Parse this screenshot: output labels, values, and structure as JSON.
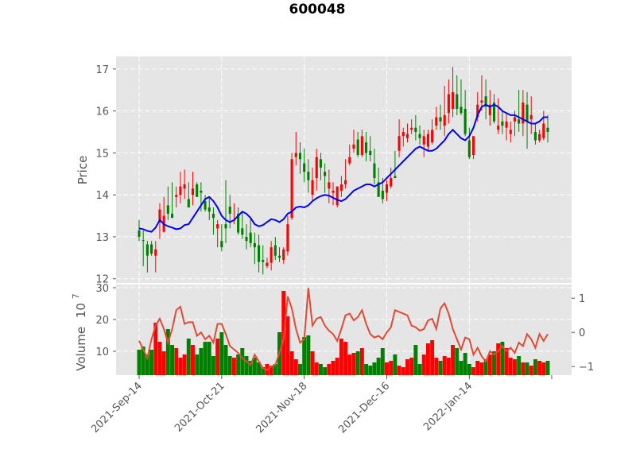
{
  "chart_data": {
    "type": "candlestick",
    "title": "600048",
    "price_panel": {
      "ylabel": "Price",
      "ylim": [
        11.9,
        17.3
      ],
      "yticks": [
        12,
        13,
        14,
        15,
        16,
        17
      ],
      "ytick_labels": [
        "12",
        "13",
        "14",
        "15",
        "16",
        "17"
      ],
      "moving_average_color": "#0000ff",
      "up_color": "#ff0000",
      "down_color": "#008000"
    },
    "volume_panel": {
      "ylabel": "Volume",
      "exponent_label": "10",
      "exponent_power": "7",
      "ylim": [
        2.5,
        31
      ],
      "yticks": [
        10,
        20,
        30
      ],
      "ytick_labels": [
        "10",
        "20",
        "30"
      ],
      "secondary_ylim": [
        -1.25,
        1.4
      ],
      "secondary_yticks": [
        -1,
        0,
        1
      ],
      "secondary_ytick_labels": [
        "−1",
        "0",
        "1"
      ],
      "secondary_line_color": "#e24a33"
    },
    "xaxis": {
      "tick_labels": [
        "2021-Sep-14",
        "2021-Oct-21",
        "2021-Nov-18",
        "2021-Dec-16",
        "2022-Jan-14"
      ],
      "tick_positions": [
        0,
        20,
        40,
        60,
        80
      ]
    },
    "x_count": 100,
    "open": [
      13.15,
      12.92,
      12.82,
      12.82,
      12.55,
      13.35,
      13.12,
      13.75,
      13.55,
      13.95,
      14.0,
      14.15,
      13.9,
      14.0,
      14.25,
      14.1,
      13.85,
      13.7,
      13.55,
      13.2,
      12.9,
      13.3,
      13.72,
      13.4,
      13.55,
      13.2,
      13.0,
      13.1,
      12.85,
      12.8,
      12.45,
      12.3,
      12.38,
      12.8,
      12.55,
      12.45,
      12.65,
      13.45,
      14.9,
      15.0,
      14.75,
      14.55,
      14.0,
      14.4,
      14.85,
      14.55,
      14.15,
      14.05,
      13.75,
      14.1,
      14.25,
      14.75,
      15.1,
      15.32,
      14.95,
      15.25,
      15.05,
      14.75,
      14.3,
      14.1,
      14.05,
      14.2,
      14.45,
      15.05,
      15.4,
      15.35,
      15.55,
      15.6,
      15.45,
      15.2,
      15.15,
      15.25,
      15.65,
      15.85,
      15.65,
      15.95,
      16.05,
      16.4,
      16.1,
      16.05,
      15.3,
      14.95,
      15.85,
      16.2,
      16.35,
      15.9,
      16.2,
      15.55,
      15.75,
      15.6,
      15.45,
      15.75,
      15.8,
      15.7,
      16.15,
      15.8,
      15.5,
      15.3,
      15.35,
      15.6
    ],
    "high": [
      13.4,
      13.15,
      12.9,
      12.9,
      12.9,
      13.8,
      13.95,
      14.2,
      14.3,
      14.2,
      14.55,
      14.6,
      14.3,
      14.55,
      14.3,
      14.3,
      14.0,
      13.95,
      13.7,
      13.4,
      13.3,
      14.35,
      14.0,
      13.8,
      13.7,
      13.6,
      13.3,
      13.45,
      13.1,
      13.05,
      12.8,
      12.5,
      12.9,
      13.0,
      12.75,
      12.75,
      13.5,
      15.0,
      15.5,
      15.25,
      15.1,
      14.85,
      14.65,
      15.1,
      15.0,
      14.75,
      14.6,
      14.3,
      14.2,
      14.45,
      14.85,
      15.2,
      15.55,
      15.5,
      15.55,
      15.5,
      15.4,
      15.1,
      14.65,
      14.4,
      14.35,
      14.65,
      15.05,
      15.8,
      15.6,
      15.7,
      15.8,
      15.9,
      15.65,
      15.55,
      15.55,
      15.8,
      16.1,
      16.15,
      16.6,
      16.75,
      17.05,
      16.85,
      16.75,
      16.5,
      15.6,
      15.4,
      16.45,
      16.85,
      16.75,
      16.5,
      16.4,
      16.3,
      16.0,
      15.95,
      15.75,
      16.0,
      16.5,
      16.5,
      16.45,
      16.35,
      15.7,
      15.55,
      16.0,
      15.9
    ],
    "low": [
      12.9,
      12.3,
      12.15,
      12.55,
      12.15,
      12.95,
      13.1,
      13.4,
      13.45,
      13.7,
      13.8,
      13.9,
      13.7,
      13.75,
      13.95,
      13.6,
      13.6,
      13.4,
      13.05,
      12.75,
      12.65,
      12.85,
      13.2,
      13.3,
      13.05,
      12.95,
      12.7,
      12.75,
      12.35,
      12.15,
      12.1,
      12.25,
      12.2,
      12.45,
      12.4,
      12.35,
      12.55,
      13.4,
      14.7,
      14.5,
      14.3,
      14.05,
      13.85,
      14.1,
      14.35,
      14.05,
      13.8,
      13.75,
      13.7,
      13.95,
      14.15,
      14.7,
      15.0,
      14.9,
      14.9,
      14.8,
      14.8,
      14.25,
      13.95,
      13.8,
      13.85,
      14.15,
      14.4,
      14.9,
      15.15,
      15.25,
      15.45,
      15.3,
      15.2,
      14.9,
      15.05,
      15.2,
      15.55,
      15.55,
      15.4,
      15.7,
      15.85,
      15.9,
      15.9,
      15.4,
      14.85,
      14.85,
      15.75,
      16.0,
      15.8,
      15.65,
      15.7,
      15.45,
      15.45,
      15.3,
      15.25,
      15.4,
      15.5,
      15.4,
      15.1,
      15.45,
      15.2,
      15.25,
      15.3,
      15.25
    ],
    "close": [
      13.0,
      12.9,
      12.55,
      12.6,
      12.7,
      13.65,
      13.5,
      13.55,
      13.45,
      14.0,
      14.2,
      14.25,
      13.7,
      14.15,
      13.95,
      14.05,
      13.65,
      13.6,
      13.45,
      13.3,
      12.75,
      13.2,
      13.55,
      13.4,
      13.1,
      13.05,
      12.9,
      12.85,
      12.75,
      12.4,
      12.4,
      12.38,
      12.75,
      12.55,
      12.5,
      12.7,
      13.3,
      14.85,
      15.0,
      14.85,
      14.55,
      14.35,
      14.35,
      14.9,
      14.65,
      14.45,
      14.3,
      14.1,
      14.2,
      14.25,
      14.35,
      14.9,
      15.2,
      14.95,
      15.4,
      15.0,
      14.95,
      14.4,
      13.95,
      13.9,
      14.25,
      14.4,
      14.4,
      15.4,
      15.5,
      15.45,
      15.6,
      15.5,
      15.35,
      15.4,
      15.45,
      15.55,
      15.85,
      15.75,
      15.9,
      16.4,
      16.45,
      16.05,
      15.95,
      15.45,
      14.9,
      15.4,
      16.15,
      16.25,
      16.1,
      16.15,
      15.75,
      15.65,
      15.65,
      15.75,
      15.55,
      15.85,
      15.7,
      16.2,
      15.75,
      15.9,
      15.3,
      15.45,
      15.7,
      15.5
    ],
    "moving_average": [
      13.2,
      13.18,
      13.14,
      13.12,
      13.22,
      13.4,
      13.3,
      13.25,
      13.22,
      13.18,
      13.2,
      13.28,
      13.3,
      13.45,
      13.6,
      13.75,
      13.9,
      13.95,
      13.85,
      13.7,
      13.5,
      13.4,
      13.35,
      13.4,
      13.5,
      13.6,
      13.55,
      13.45,
      13.3,
      13.25,
      13.28,
      13.35,
      13.42,
      13.4,
      13.35,
      13.42,
      13.55,
      13.6,
      13.7,
      13.72,
      13.7,
      13.75,
      13.85,
      13.92,
      13.97,
      14.0,
      13.98,
      13.93,
      13.88,
      13.85,
      13.9,
      14.0,
      14.1,
      14.15,
      14.2,
      14.25,
      14.25,
      14.2,
      14.25,
      14.3,
      14.4,
      14.5,
      14.6,
      14.7,
      14.8,
      14.9,
      15.0,
      15.1,
      15.15,
      15.1,
      15.05,
      15.05,
      15.1,
      15.2,
      15.3,
      15.45,
      15.55,
      15.45,
      15.35,
      15.3,
      15.4,
      15.6,
      15.9,
      16.1,
      16.15,
      16.1,
      16.15,
      16.1,
      16.0,
      15.95,
      15.9,
      15.9,
      15.85,
      15.8,
      15.75,
      15.7,
      15.7,
      15.75,
      15.85,
      15.85
    ],
    "volume": [
      10.5,
      11.5,
      9.0,
      10.5,
      19.0,
      13.0,
      10.0,
      17.0,
      12.0,
      11.0,
      8.0,
      9.0,
      14.0,
      12.0,
      9.0,
      11.0,
      13.0,
      13.0,
      8.5,
      14.0,
      16.0,
      12.0,
      8.5,
      8.0,
      9.0,
      11.0,
      8.5,
      7.0,
      8.0,
      6.5,
      5.0,
      6.0,
      5.5,
      6.0,
      16.0,
      29.0,
      21.0,
      10.0,
      7.5,
      6.0,
      14.5,
      15.0,
      10.0,
      6.5,
      6.0,
      5.0,
      6.0,
      7.0,
      8.0,
      14.0,
      13.0,
      9.0,
      9.5,
      10.0,
      11.0,
      6.0,
      5.5,
      6.5,
      8.0,
      11.0,
      6.5,
      7.0,
      9.0,
      5.5,
      5.0,
      7.5,
      8.0,
      12.0,
      6.0,
      9.0,
      12.5,
      13.5,
      8.0,
      7.0,
      8.5,
      8.0,
      12.0,
      11.0,
      7.0,
      9.5,
      6.0,
      5.0,
      7.0,
      6.5,
      7.5,
      9.0,
      10.0,
      12.5,
      13.0,
      11.0,
      8.0,
      7.5,
      8.5,
      6.5,
      6.5,
      5.5,
      7.5,
      7.0,
      6.5,
      7.0
    ],
    "secondary_line": [
      -0.25,
      -0.5,
      -0.75,
      -0.2,
      0.2,
      0.4,
      0.1,
      -0.3,
      0.1,
      0.65,
      0.75,
      0.25,
      0.3,
      0.3,
      -0.1,
      0.0,
      -0.2,
      -0.1,
      -0.3,
      0.25,
      0.25,
      -0.05,
      -0.4,
      -0.5,
      -0.6,
      -0.75,
      -0.85,
      -0.95,
      -0.65,
      -0.85,
      -1.05,
      -1.1,
      -1.0,
      -0.95,
      -0.6,
      -0.2,
      1.05,
      0.7,
      0.1,
      -0.3,
      -0.2,
      1.3,
      0.2,
      0.4,
      0.45,
      0.2,
      0.05,
      -0.05,
      -0.25,
      0.1,
      0.5,
      0.55,
      0.35,
      0.45,
      0.65,
      0.25,
      -0.05,
      -0.15,
      -0.1,
      -0.2,
      0.0,
      0.15,
      0.65,
      0.6,
      0.55,
      0.5,
      0.2,
      0.15,
      0.05,
      0.1,
      0.35,
      0.4,
      0.1,
      0.7,
      0.85,
      0.55,
      0.1,
      -0.2,
      -0.5,
      -0.15,
      -0.2,
      -0.65,
      -0.45,
      -0.7,
      -0.85,
      -0.55,
      -0.65,
      -0.55,
      -0.4,
      -0.55,
      -0.45,
      -0.6,
      -0.3,
      -0.4,
      -0.05,
      -0.2,
      -0.45,
      -0.05,
      -0.25,
      -0.05
    ]
  }
}
